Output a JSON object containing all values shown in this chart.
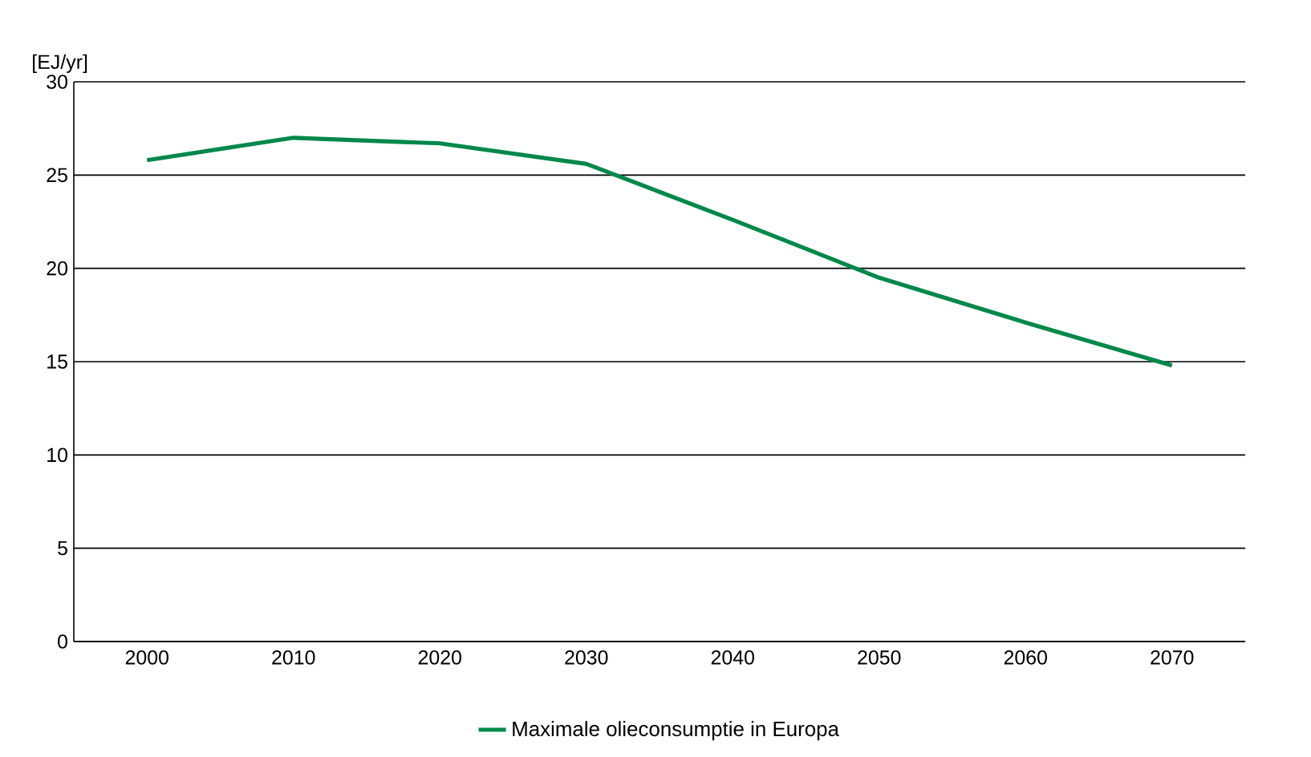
{
  "chart_data": {
    "type": "line",
    "ylabel": "[EJ/yr]",
    "categories": [
      "2000",
      "2010",
      "2020",
      "2030",
      "2040",
      "2050",
      "2060",
      "2070"
    ],
    "series": [
      {
        "name": "Maximale olieconsumptie in Europa",
        "color": "#00884a",
        "values": [
          25.8,
          27.0,
          26.7,
          25.6,
          22.6,
          19.5,
          17.1,
          14.8
        ]
      }
    ],
    "ylim": [
      0,
      30
    ],
    "yticks": [
      0,
      5,
      10,
      15,
      20,
      25,
      30
    ],
    "grid": "y",
    "legend": "bottom",
    "marker": "none",
    "line_style": "solid"
  }
}
